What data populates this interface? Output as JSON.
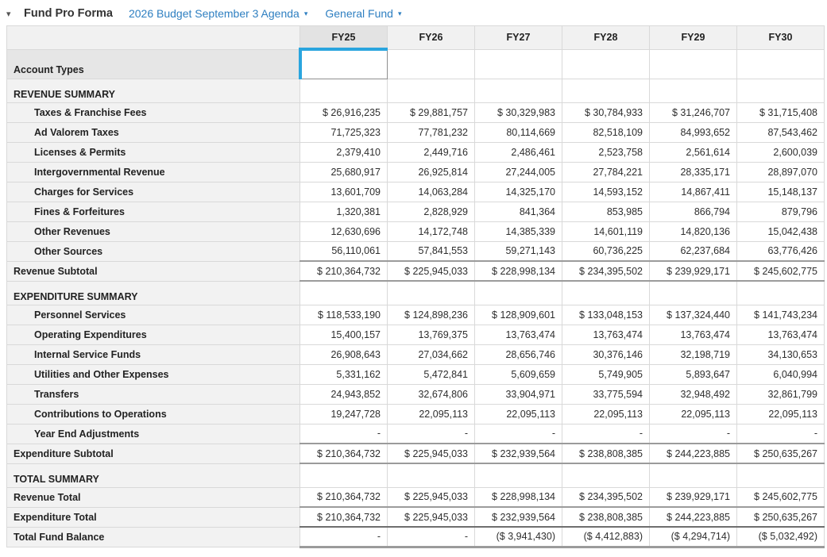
{
  "header": {
    "collapse_icon": "▾",
    "title": "Fund Pro Forma",
    "budget_dropdown_label": "2026 Budget September 3 Agenda",
    "fund_dropdown_label": "General Fund",
    "dropdown_caret": "▾",
    "link_color": "#2e7fc1"
  },
  "colors": {
    "selection_blue": "#2aa5de",
    "header_gray": "#f1f1f1",
    "selected_header_gray": "#e3e3e3",
    "label_column_gray": "#f2f2f2",
    "grid_border": "#d9d9d9",
    "subtotal_border": "#9b9b9b"
  },
  "table": {
    "columns": [
      "FY25",
      "FY26",
      "FY27",
      "FY28",
      "FY29",
      "FY30"
    ],
    "selected_column": "FY25",
    "selected_column_index": 0,
    "rows": [
      {
        "label": "Account Types",
        "type": "account-types",
        "values": [
          "",
          "",
          "",
          "",
          "",
          ""
        ]
      },
      {
        "label": "REVENUE SUMMARY",
        "type": "section",
        "values": [
          "",
          "",
          "",
          "",
          "",
          ""
        ]
      },
      {
        "label": "Taxes & Franchise Fees",
        "type": "detail",
        "values": [
          "$ 26,916,235",
          "$ 29,881,757",
          "$ 30,329,983",
          "$ 30,784,933",
          "$ 31,246,707",
          "$ 31,715,408"
        ]
      },
      {
        "label": "Ad Valorem Taxes",
        "type": "detail",
        "values": [
          "71,725,323",
          "77,781,232",
          "80,114,669",
          "82,518,109",
          "84,993,652",
          "87,543,462"
        ]
      },
      {
        "label": "Licenses & Permits",
        "type": "detail",
        "values": [
          "2,379,410",
          "2,449,716",
          "2,486,461",
          "2,523,758",
          "2,561,614",
          "2,600,039"
        ]
      },
      {
        "label": "Intergovernmental Revenue",
        "type": "detail",
        "values": [
          "25,680,917",
          "26,925,814",
          "27,244,005",
          "27,784,221",
          "28,335,171",
          "28,897,070"
        ]
      },
      {
        "label": "Charges for Services",
        "type": "detail",
        "values": [
          "13,601,709",
          "14,063,284",
          "14,325,170",
          "14,593,152",
          "14,867,411",
          "15,148,137"
        ]
      },
      {
        "label": "Fines & Forfeitures",
        "type": "detail",
        "values": [
          "1,320,381",
          "2,828,929",
          "841,364",
          "853,985",
          "866,794",
          "879,796"
        ]
      },
      {
        "label": "Other Revenues",
        "type": "detail",
        "values": [
          "12,630,696",
          "14,172,748",
          "14,385,339",
          "14,601,119",
          "14,820,136",
          "15,042,438"
        ]
      },
      {
        "label": "Other Sources",
        "type": "detail",
        "values": [
          "56,110,061",
          "57,841,553",
          "59,271,143",
          "60,736,225",
          "62,237,684",
          "63,776,426"
        ]
      },
      {
        "label": "Revenue Subtotal",
        "type": "subtotal",
        "values": [
          "$ 210,364,732",
          "$ 225,945,033",
          "$ 228,998,134",
          "$ 234,395,502",
          "$ 239,929,171",
          "$ 245,602,775"
        ]
      },
      {
        "label": "EXPENDITURE SUMMARY",
        "type": "section",
        "values": [
          "",
          "",
          "",
          "",
          "",
          ""
        ]
      },
      {
        "label": "Personnel Services",
        "type": "detail",
        "values": [
          "$ 118,533,190",
          "$ 124,898,236",
          "$ 128,909,601",
          "$ 133,048,153",
          "$ 137,324,440",
          "$ 141,743,234"
        ]
      },
      {
        "label": "Operating Expenditures",
        "type": "detail",
        "values": [
          "15,400,157",
          "13,769,375",
          "13,763,474",
          "13,763,474",
          "13,763,474",
          "13,763,474"
        ]
      },
      {
        "label": "Internal Service Funds",
        "type": "detail",
        "values": [
          "26,908,643",
          "27,034,662",
          "28,656,746",
          "30,376,146",
          "32,198,719",
          "34,130,653"
        ]
      },
      {
        "label": "Utilities and Other Expenses",
        "type": "detail",
        "values": [
          "5,331,162",
          "5,472,841",
          "5,609,659",
          "5,749,905",
          "5,893,647",
          "6,040,994"
        ]
      },
      {
        "label": "Transfers",
        "type": "detail",
        "values": [
          "24,943,852",
          "32,674,806",
          "33,904,971",
          "33,775,594",
          "32,948,492",
          "32,861,799"
        ]
      },
      {
        "label": "Contributions to Operations",
        "type": "detail",
        "values": [
          "19,247,728",
          "22,095,113",
          "22,095,113",
          "22,095,113",
          "22,095,113",
          "22,095,113"
        ]
      },
      {
        "label": "Year End Adjustments",
        "type": "detail",
        "values": [
          "-",
          "-",
          "-",
          "-",
          "-",
          "-"
        ]
      },
      {
        "label": "Expenditure Subtotal",
        "type": "subtotal",
        "values": [
          "$ 210,364,732",
          "$ 225,945,033",
          "$ 232,939,564",
          "$ 238,808,385",
          "$ 244,223,885",
          "$ 250,635,267"
        ]
      },
      {
        "label": "TOTAL SUMMARY",
        "type": "section",
        "values": [
          "",
          "",
          "",
          "",
          "",
          ""
        ]
      },
      {
        "label": "Revenue Total",
        "type": "total",
        "values": [
          "$ 210,364,732",
          "$ 225,945,033",
          "$ 228,998,134",
          "$ 234,395,502",
          "$ 239,929,171",
          "$ 245,602,775"
        ]
      },
      {
        "label": "Expenditure Total",
        "type": "total-strong",
        "values": [
          "$ 210,364,732",
          "$ 225,945,033",
          "$ 232,939,564",
          "$ 238,808,385",
          "$ 244,223,885",
          "$ 250,635,267"
        ]
      },
      {
        "label": "Total Fund Balance",
        "type": "balance",
        "values": [
          "-",
          "-",
          "($ 3,941,430)",
          "($ 4,412,883)",
          "($ 4,294,714)",
          "($ 5,032,492)"
        ]
      }
    ]
  }
}
